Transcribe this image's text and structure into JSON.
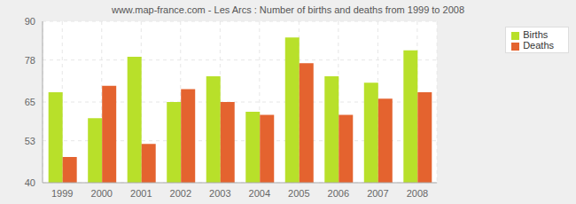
{
  "chart_data": {
    "type": "bar",
    "title": "www.map-france.com - Les Arcs : Number of births and deaths from 1999 to 2008",
    "categories": [
      "1999",
      "2000",
      "2001",
      "2002",
      "2003",
      "2004",
      "2005",
      "2006",
      "2007",
      "2008"
    ],
    "series": [
      {
        "name": "Births",
        "color": "#b8e02a",
        "values": [
          68,
          60,
          79,
          65,
          73,
          62,
          85,
          73,
          71,
          81
        ]
      },
      {
        "name": "Deaths",
        "color": "#e4632f",
        "values": [
          48,
          70,
          52,
          69,
          65,
          61,
          77,
          61,
          66,
          68
        ]
      }
    ],
    "ylim": [
      40,
      90
    ],
    "yticks": [
      40,
      53,
      65,
      78,
      90
    ],
    "grid": true,
    "legend": "right"
  }
}
